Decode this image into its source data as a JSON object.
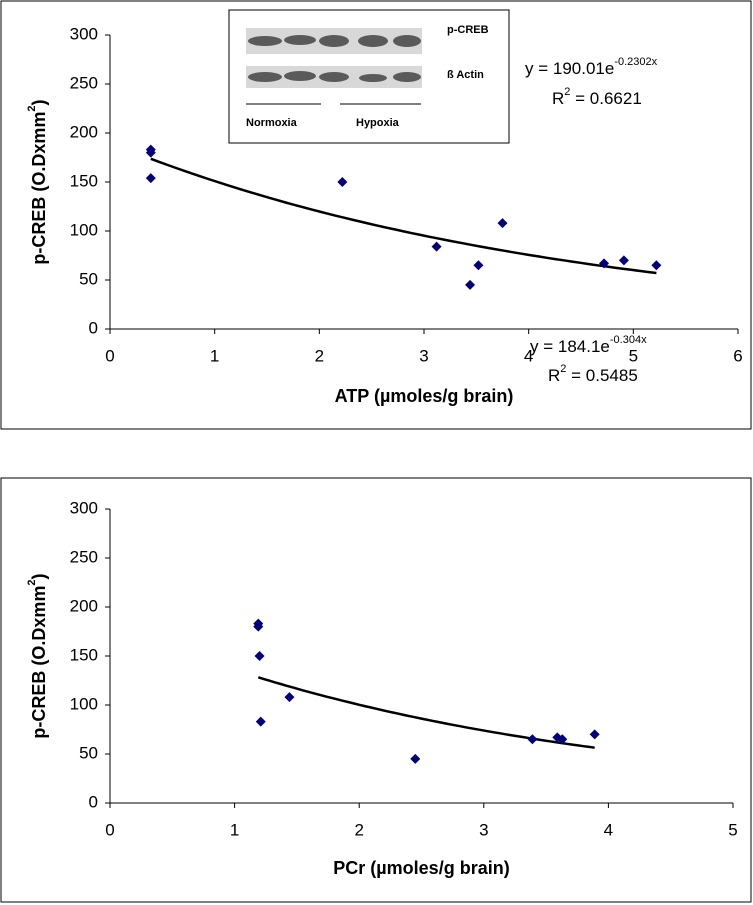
{
  "chart_data": [
    {
      "type": "scatter",
      "x_label": "ATP (µmoles/g brain)",
      "y_label": {
        "main": "p-CREB (O.Dxmm",
        "sup": "2",
        "end": ")"
      },
      "x": [
        0.39,
        0.39,
        0.39,
        2.22,
        3.12,
        3.44,
        3.52,
        3.75,
        4.72,
        4.91,
        5.22
      ],
      "values": [
        183,
        180,
        154,
        150,
        84,
        45,
        65,
        108,
        67,
        70,
        65
      ],
      "color": "#000080",
      "xlim": [
        0,
        6
      ],
      "xticks": [
        0,
        1,
        2,
        3,
        4,
        5,
        6
      ],
      "ylim": [
        0,
        300
      ],
      "yticks": [
        0,
        50,
        100,
        150,
        200,
        250,
        300
      ],
      "trendline": {
        "coefficient": 190.01,
        "exponent": -0.2302,
        "label": "y = 190.01e",
        "label_exponent": "-0.2302x",
        "r2_label": "R",
        "r2_sup": "2",
        "r2_value": " = 0.6621"
      },
      "inset_labels": {
        "top_band": "p-CREB",
        "bottom_band": "ß Actin",
        "left_group": "Normoxia",
        "right_group": "Hypoxia"
      }
    },
    {
      "type": "scatter",
      "x_label": "PCr (µmoles/g brain)",
      "y_label": {
        "main": "p-CREB (O.Dxmm",
        "sup": "2",
        "end": ")"
      },
      "x": [
        1.19,
        1.19,
        1.2,
        1.21,
        1.44,
        2.45,
        3.39,
        3.59,
        3.63,
        3.89
      ],
      "values": [
        183,
        180,
        150,
        83,
        108,
        45,
        65,
        67,
        65,
        70
      ],
      "color": "#000080",
      "xlim": [
        0,
        5
      ],
      "xticks": [
        0,
        1,
        2,
        3,
        4,
        5
      ],
      "ylim": [
        0,
        300
      ],
      "yticks": [
        0,
        50,
        100,
        150,
        200,
        250,
        300
      ],
      "trendline": {
        "coefficient": 184.1,
        "exponent": -0.304,
        "label": "y = 184.1e",
        "label_exponent": "-0.304x",
        "r2_label": "R",
        "r2_sup": "2",
        "r2_value": " = 0.5485"
      }
    }
  ]
}
